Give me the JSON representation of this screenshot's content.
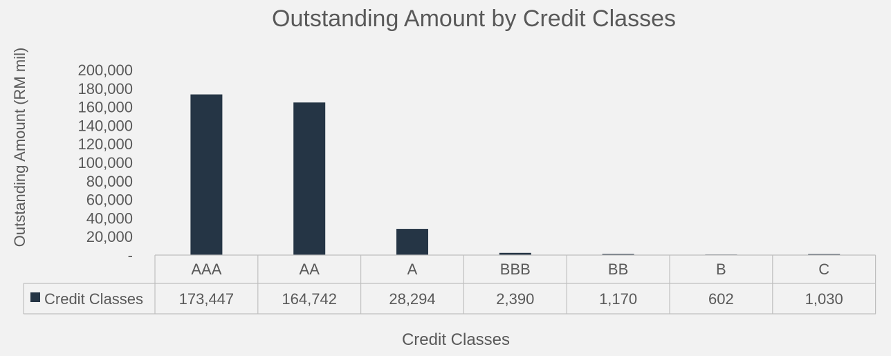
{
  "chart_data": {
    "type": "bar",
    "title": "Outstanding Amount by Credit Classes",
    "xlabel": "Credit Classes",
    "ylabel": "Outstanding Amount (RM mil)",
    "categories": [
      "AAA",
      "AA",
      "A",
      "BBB",
      "BB",
      "B",
      "C"
    ],
    "series": [
      {
        "name": "Credit Classes",
        "values": [
          173447,
          164742,
          28294,
          2390,
          1170,
          602,
          1030
        ],
        "labels": [
          "173,447",
          "164,742",
          "28,294",
          "2,390",
          "1,170",
          "602",
          "1,030"
        ]
      }
    ],
    "ylim": [
      0,
      200000
    ],
    "yticks": [
      "-",
      "20,000",
      "40,000",
      "60,000",
      "80,000",
      "100,000",
      "120,000",
      "140,000",
      "160,000",
      "180,000",
      "200,000"
    ],
    "ytick_values": [
      0,
      20000,
      40000,
      60000,
      80000,
      100000,
      120000,
      140000,
      160000,
      180000,
      200000
    ],
    "grid": false,
    "legend": "data-table",
    "bar_color": "#253545"
  }
}
